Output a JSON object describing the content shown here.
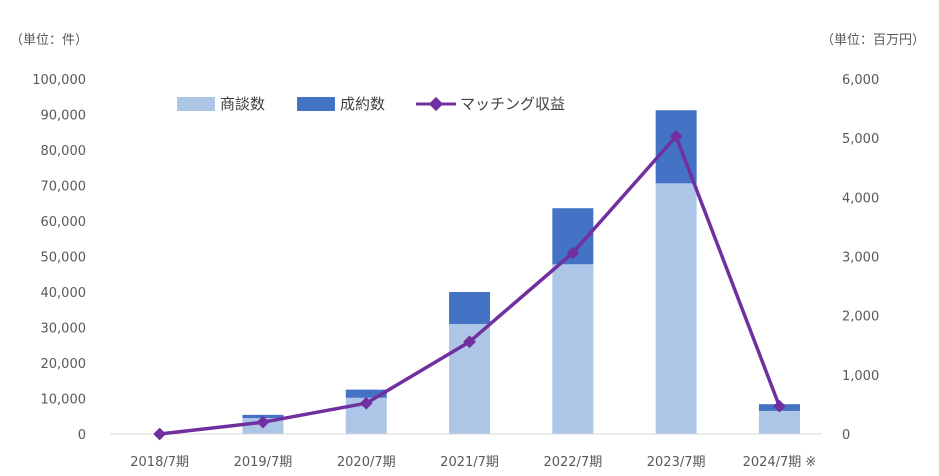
{
  "chart_data": {
    "type": "bar",
    "stacked": true,
    "categories": [
      "2018/7期",
      "2019/7期",
      "2020/7期",
      "2021/7期",
      "2022/7期",
      "2023/7期",
      "2024/7期 ※"
    ],
    "left_unit": "（単位：件）",
    "right_unit": "（単位：百万円）",
    "ylim_left": [
      0,
      100000
    ],
    "ylim_right": [
      0,
      6000
    ],
    "left_ticks": [
      "0",
      "10,000",
      "20,000",
      "30,000",
      "40,000",
      "50,000",
      "60,000",
      "70,000",
      "80,000",
      "90,000",
      "100,000"
    ],
    "right_ticks": [
      "0",
      "1,000",
      "2,000",
      "3,000",
      "4,000",
      "5,000",
      "6,000"
    ],
    "series": [
      {
        "name": "商談数",
        "kind": "bar",
        "axis": "left",
        "color": "#adc6e8",
        "values": [
          0,
          4500,
          10200,
          31000,
          47800,
          70600,
          6500
        ]
      },
      {
        "name": "成約数",
        "kind": "bar",
        "axis": "left",
        "color": "#4472c4",
        "values": [
          0,
          900,
          2300,
          9000,
          15800,
          20600,
          1900
        ]
      },
      {
        "name": "マッチング収益",
        "kind": "line",
        "axis": "right",
        "color": "#7030a0",
        "values": [
          0,
          200,
          520,
          1560,
          3060,
          5030,
          470
        ]
      }
    ],
    "grid": false,
    "legend_position": "top-left"
  }
}
